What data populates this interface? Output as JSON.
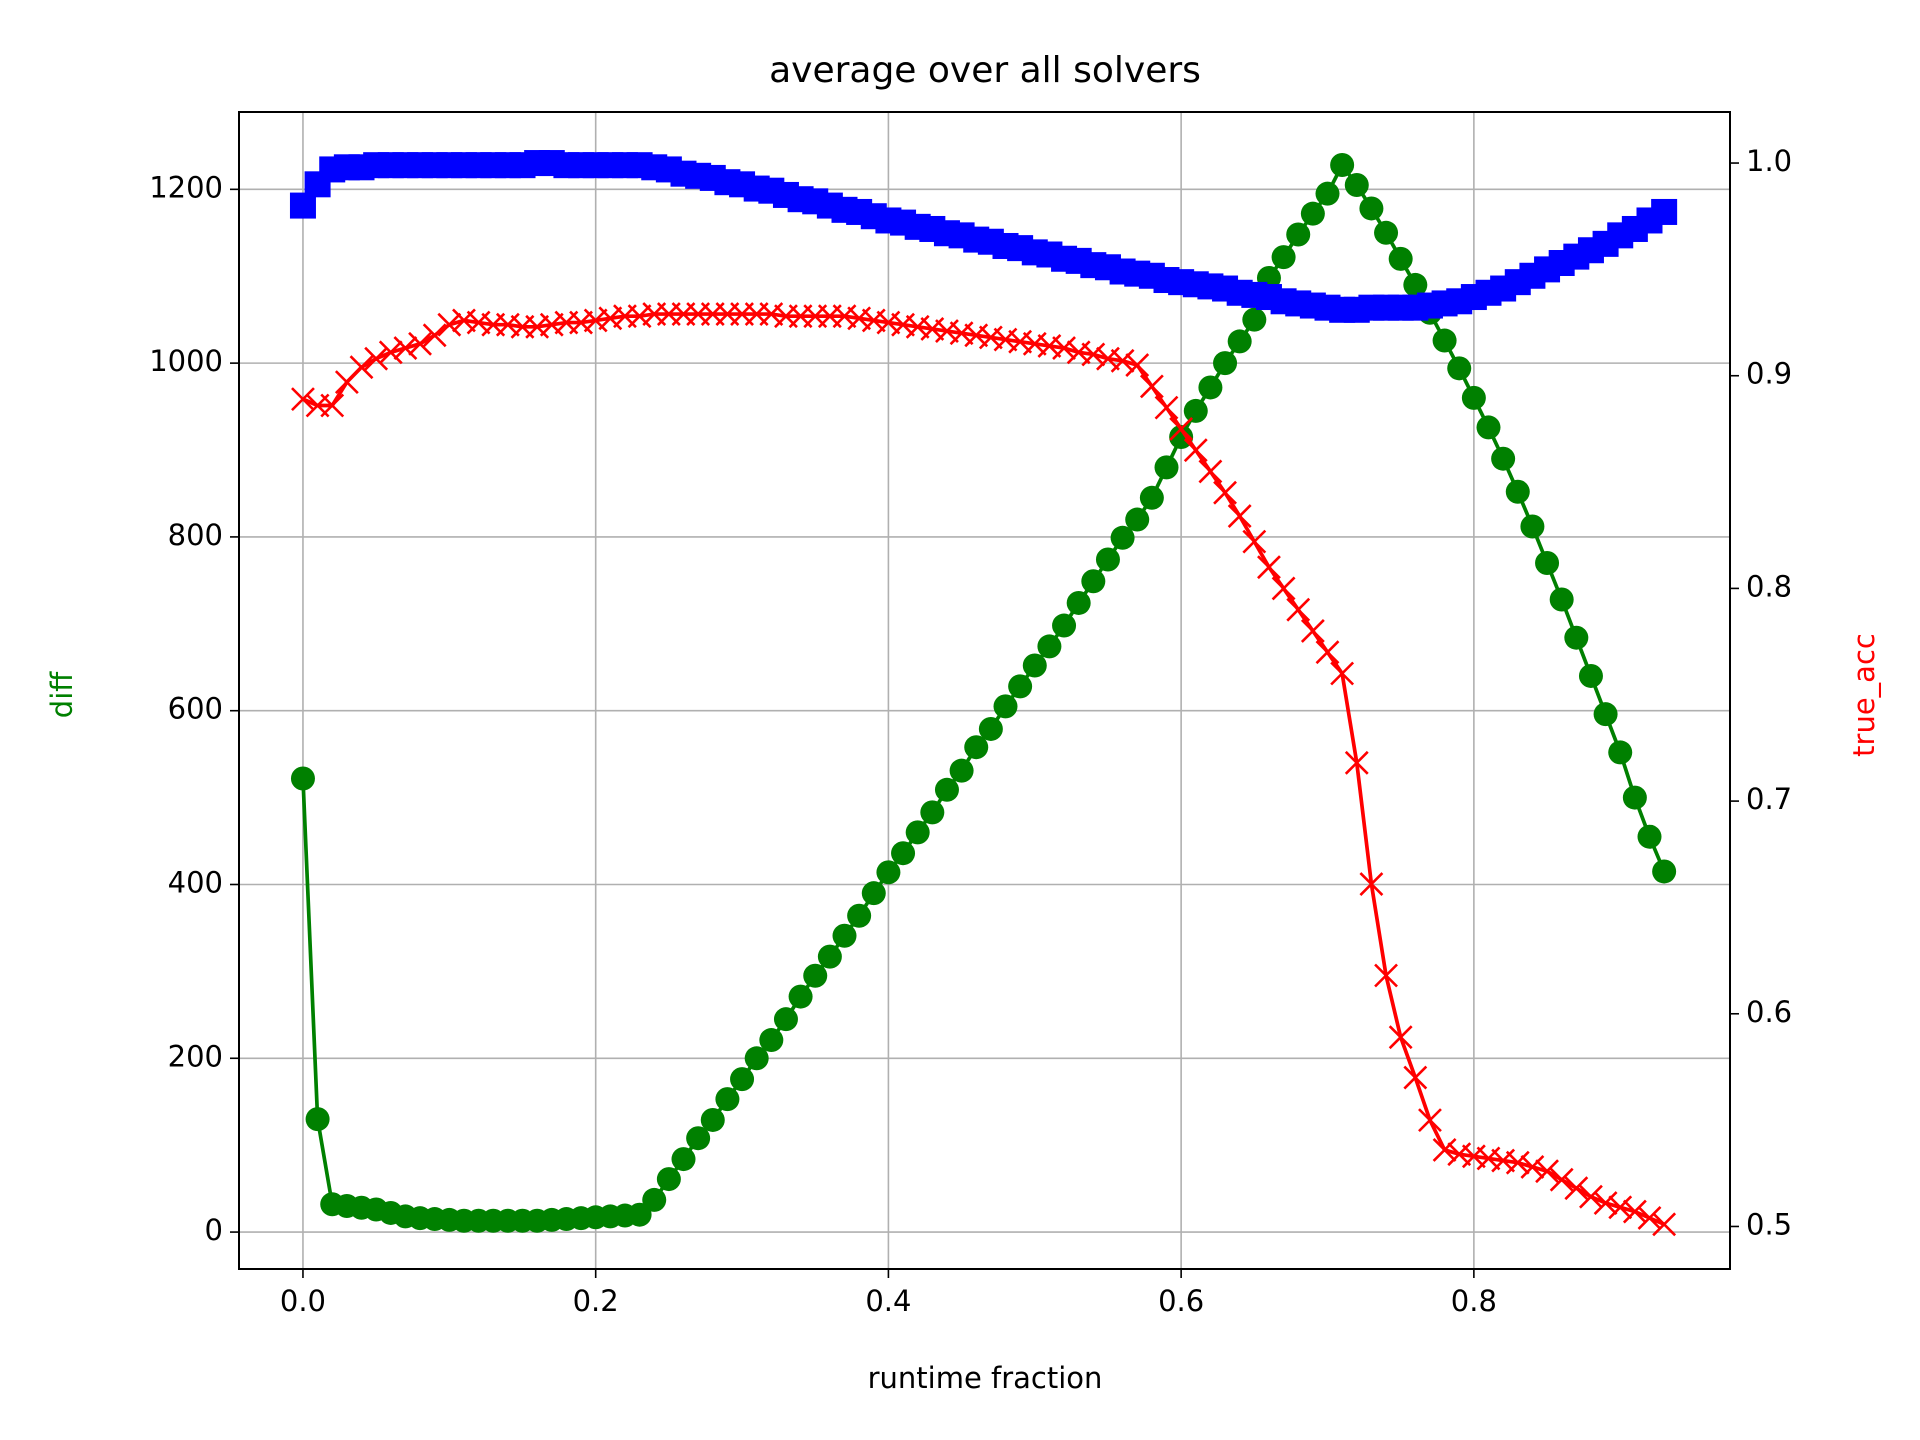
{
  "chart_data": {
    "type": "line",
    "title": "average over all solvers",
    "xlabel": "runtime fraction",
    "ylabel": "diff",
    "y2label": "true_acc",
    "x": [
      0,
      0.01,
      0.02,
      0.03,
      0.04,
      0.05,
      0.06,
      0.07,
      0.08,
      0.09,
      0.1,
      0.11,
      0.12,
      0.13,
      0.14,
      0.15,
      0.16,
      0.17,
      0.18,
      0.19,
      0.2,
      0.21,
      0.22,
      0.23,
      0.24,
      0.25,
      0.26,
      0.27,
      0.28,
      0.29,
      0.3,
      0.31,
      0.32,
      0.33,
      0.34,
      0.35,
      0.36,
      0.37,
      0.38,
      0.39,
      0.4,
      0.41,
      0.42,
      0.43,
      0.44,
      0.45,
      0.46,
      0.47,
      0.48,
      0.49,
      0.5,
      0.51,
      0.52,
      0.53,
      0.54,
      0.55,
      0.56,
      0.57,
      0.58,
      0.59,
      0.6,
      0.61,
      0.62,
      0.63,
      0.64,
      0.65,
      0.66,
      0.67,
      0.68,
      0.69,
      0.7,
      0.71,
      0.72,
      0.73,
      0.74,
      0.75,
      0.76,
      0.77,
      0.78,
      0.79,
      0.8,
      0.81,
      0.82,
      0.83,
      0.84,
      0.85,
      0.86,
      0.87,
      0.88,
      0.89,
      0.9,
      0.91,
      0.92,
      0.93
    ],
    "series": [
      {
        "color": "#008000",
        "marker": "o",
        "values": [
          522,
          130,
          32,
          30,
          28,
          26,
          22,
          18,
          16,
          15,
          14,
          13,
          13,
          13,
          13,
          13,
          13,
          14,
          15,
          16,
          17,
          18,
          19,
          20,
          37,
          61,
          84,
          108,
          129,
          153,
          176,
          200,
          221,
          245,
          271,
          295,
          317,
          341,
          364,
          390,
          414,
          436,
          460,
          483,
          509,
          531,
          558,
          579,
          605,
          628,
          652,
          674,
          698,
          724,
          749,
          774,
          799,
          820,
          845,
          880,
          915,
          945,
          972,
          1000,
          1025,
          1050,
          1098,
          1122,
          1148,
          1172,
          1195,
          1228,
          1205,
          1178,
          1150,
          1120,
          1090,
          1058,
          1026,
          994,
          960,
          926,
          890,
          852,
          812,
          770,
          728,
          684,
          640,
          596,
          552,
          500,
          455,
          415
        ]
      },
      {
        "color": "#ff0000",
        "marker": "x",
        "axis": "y2",
        "values": [
          0.889,
          0.886,
          0.886,
          0.897,
          0.904,
          0.908,
          0.911,
          0.913,
          0.915,
          0.919,
          0.924,
          0.926,
          0.925,
          0.924,
          0.924,
          0.923,
          0.923,
          0.924,
          0.925,
          0.925,
          0.926,
          0.927,
          0.928,
          0.928,
          0.929,
          0.929,
          0.929,
          0.929,
          0.929,
          0.929,
          0.929,
          0.929,
          0.929,
          0.928,
          0.928,
          0.928,
          0.928,
          0.928,
          0.927,
          0.926,
          0.925,
          0.924,
          0.923,
          0.922,
          0.921,
          0.92,
          0.919,
          0.918,
          0.917,
          0.916,
          0.915,
          0.914,
          0.913,
          0.911,
          0.91,
          0.908,
          0.907,
          0.905,
          0.895,
          0.885,
          0.875,
          0.865,
          0.855,
          0.845,
          0.834,
          0.822,
          0.81,
          0.8,
          0.79,
          0.78,
          0.77,
          0.76,
          0.718,
          0.661,
          0.618,
          0.589,
          0.57,
          0.55,
          0.536,
          0.534,
          0.533,
          0.532,
          0.531,
          0.53,
          0.528,
          0.526,
          0.522,
          0.518,
          0.514,
          0.511,
          0.509,
          0.507,
          0.504,
          0.501
        ]
      },
      {
        "color": "#0000ff",
        "marker": "s",
        "axis": "y2",
        "values": [
          0.98,
          0.99,
          0.997,
          0.998,
          0.998,
          0.999,
          0.999,
          0.999,
          0.999,
          0.999,
          0.999,
          0.999,
          0.999,
          0.999,
          0.999,
          0.999,
          1,
          1,
          0.999,
          0.999,
          0.999,
          0.999,
          0.999,
          0.999,
          0.998,
          0.997,
          0.995,
          0.994,
          0.993,
          0.991,
          0.99,
          0.988,
          0.987,
          0.985,
          0.983,
          0.982,
          0.98,
          0.978,
          0.977,
          0.975,
          0.973,
          0.972,
          0.97,
          0.969,
          0.967,
          0.966,
          0.964,
          0.963,
          0.961,
          0.96,
          0.958,
          0.957,
          0.955,
          0.954,
          0.952,
          0.951,
          0.949,
          0.948,
          0.947,
          0.945,
          0.944,
          0.943,
          0.942,
          0.941,
          0.939,
          0.938,
          0.937,
          0.935,
          0.934,
          0.933,
          0.932,
          0.931,
          0.931,
          0.932,
          0.932,
          0.932,
          0.932,
          0.933,
          0.934,
          0.935,
          0.937,
          0.939,
          0.941,
          0.944,
          0.947,
          0.95,
          0.953,
          0.956,
          0.959,
          0.962,
          0.966,
          0.969,
          0.973,
          0.977
        ]
      }
    ],
    "xlim": [
      -0.0437,
      0.975
    ],
    "ylim": [
      -42.5,
      1289
    ],
    "y2lim": [
      0.48,
      1.024
    ],
    "xticks": [
      {
        "value": 0,
        "label": "0.0"
      },
      0.2,
      0.4,
      0.6,
      0.8
    ],
    "yticks": [
      0,
      200,
      400,
      600,
      800,
      1000,
      1200
    ],
    "y2ticks": [
      0.5,
      0.6,
      0.7,
      0.8,
      0.9,
      {
        "value": 1,
        "label": "1.0"
      }
    ],
    "grid": true
  }
}
